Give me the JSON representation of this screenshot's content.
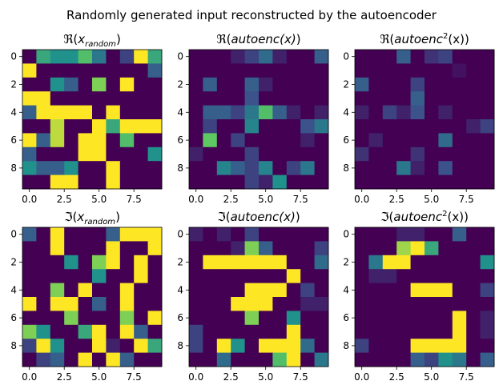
{
  "figure": {
    "suptitle": "Randomly generated input reconstructed by the autoencoder"
  },
  "colormap": [
    "#440154",
    "#3b528b",
    "#21918c",
    "#5ec962",
    "#fde725"
  ],
  "chart_data": [
    {
      "type": "heatmap",
      "title_prefix": "ℜ(",
      "title_core": "x",
      "title_sub": "random",
      "title_sup": "",
      "title_suffix": ")",
      "xticks": [
        0,
        2.5,
        5,
        7.5
      ],
      "xtick_labels": [
        "0.0",
        "2.5",
        "5.0",
        "7.5"
      ],
      "yticks": [
        0,
        2,
        4,
        6,
        8
      ],
      "ytick_labels": [
        "0",
        "2",
        "4",
        "6",
        "8"
      ],
      "values": [
        [
          0,
          0.6,
          0.5,
          0.5,
          0.7,
          0.4,
          0,
          0.2,
          1,
          0.6
        ],
        [
          1,
          0,
          0,
          0,
          0,
          0,
          0,
          0,
          0,
          0.3
        ],
        [
          0,
          0,
          0.5,
          0.3,
          0,
          0.8,
          0,
          1,
          0,
          0
        ],
        [
          1,
          1,
          0,
          0,
          0,
          0,
          0,
          0,
          0,
          0
        ],
        [
          0.3,
          1,
          1,
          1,
          1,
          0,
          1,
          0,
          0,
          0
        ],
        [
          0,
          0,
          0.9,
          0,
          0,
          1,
          0.6,
          1,
          1,
          1
        ],
        [
          1,
          0.3,
          0.9,
          0,
          1,
          1,
          0,
          0.7,
          0,
          0
        ],
        [
          0.3,
          0,
          0,
          0,
          1,
          1,
          0,
          0,
          0,
          0.5
        ],
        [
          0.5,
          0.3,
          0.3,
          0.5,
          0,
          0,
          1,
          0,
          0,
          0
        ],
        [
          0,
          0,
          1,
          1,
          0,
          0,
          1,
          0,
          0,
          0
        ]
      ]
    },
    {
      "type": "heatmap",
      "title_prefix": "ℜ(",
      "title_core": "autoenc(x)",
      "title_sub": "",
      "title_sup": "",
      "title_suffix": ")",
      "xticks": [
        0,
        2.5,
        5,
        7.5
      ],
      "xtick_labels": [
        "0.0",
        "2.5",
        "5.0",
        "7.5"
      ],
      "yticks": [
        0,
        2,
        4,
        6,
        8
      ],
      "ytick_labels": [
        "0",
        "2",
        "4",
        "6",
        "8"
      ],
      "values": [
        [
          0,
          0,
          0,
          0.1,
          0.2,
          0.35,
          0.1,
          0,
          0,
          0.3
        ],
        [
          0,
          0,
          0,
          0,
          0,
          0,
          0,
          0,
          0,
          0
        ],
        [
          0,
          0.3,
          0,
          0,
          0.3,
          0.1,
          0,
          0,
          0,
          0
        ],
        [
          0,
          0,
          0,
          0,
          0.25,
          0,
          0,
          0,
          0,
          0
        ],
        [
          0,
          0.3,
          0.3,
          0.2,
          0.4,
          0.7,
          0.3,
          0.1,
          0,
          0.1
        ],
        [
          0,
          0.2,
          0,
          0,
          0.45,
          0,
          0,
          0,
          0.25,
          0.4
        ],
        [
          0,
          0.75,
          0,
          0.2,
          0,
          0,
          0,
          0,
          0.1,
          0
        ],
        [
          0.1,
          0,
          0,
          0,
          0.2,
          0,
          0,
          0,
          0,
          0
        ],
        [
          0,
          0,
          0.45,
          0.3,
          0.2,
          0.45,
          0,
          0.2,
          0.4,
          0
        ],
        [
          0,
          0,
          0,
          0,
          0.2,
          0.1,
          0.5,
          0,
          0,
          0
        ]
      ]
    },
    {
      "type": "heatmap",
      "title_prefix": "ℜ(",
      "title_core": "autoenc",
      "title_sub": "",
      "title_sup": "2",
      "title_suffix": "(x))",
      "xticks": [
        0,
        2.5,
        5,
        7.5
      ],
      "xtick_labels": [
        "0.0",
        "2.5",
        "5.0",
        "7.5"
      ],
      "yticks": [
        0,
        2,
        4,
        6,
        8
      ],
      "ytick_labels": [
        "0",
        "2",
        "4",
        "6",
        "8"
      ],
      "values": [
        [
          0,
          0,
          0,
          0.3,
          0,
          0.15,
          0.2,
          0,
          0,
          0
        ],
        [
          0,
          0,
          0,
          0,
          0,
          0,
          0,
          0.05,
          0,
          0
        ],
        [
          0.3,
          0,
          0,
          0,
          0.2,
          0,
          0,
          0,
          0,
          0
        ],
        [
          0,
          0,
          0,
          0,
          0.3,
          0,
          0,
          0,
          0,
          0
        ],
        [
          0.1,
          0,
          0.2,
          0.1,
          0.25,
          0,
          0.1,
          0,
          0,
          0
        ],
        [
          0,
          0,
          0,
          0,
          0,
          0,
          0,
          0,
          0.1,
          0.2
        ],
        [
          0,
          0.1,
          0,
          0,
          0,
          0,
          0.35,
          0,
          0,
          0
        ],
        [
          0.15,
          0,
          0,
          0,
          0.15,
          0,
          0,
          0,
          0,
          0
        ],
        [
          0,
          0,
          0,
          0.4,
          0.1,
          0,
          0.25,
          0,
          0,
          0
        ],
        [
          0,
          0,
          0,
          0,
          0,
          0,
          0,
          0,
          0,
          0
        ]
      ]
    },
    {
      "type": "heatmap",
      "title_prefix": "ℑ(",
      "title_core": "x",
      "title_sub": "random",
      "title_sup": "",
      "title_suffix": ")",
      "xticks": [
        0,
        2.5,
        5,
        7.5
      ],
      "xtick_labels": [
        "0.0",
        "2.5",
        "5.0",
        "7.5"
      ],
      "yticks": [
        0,
        2,
        4,
        6,
        8
      ],
      "ytick_labels": [
        "0",
        "2",
        "4",
        "6",
        "8"
      ],
      "values": [
        [
          0.3,
          0,
          1,
          0,
          0,
          0,
          0.3,
          1,
          1,
          1
        ],
        [
          0,
          0,
          1,
          0,
          0,
          0,
          1,
          0,
          0,
          1
        ],
        [
          0,
          0,
          0,
          0.5,
          0,
          0.8,
          1,
          0,
          1,
          0
        ],
        [
          0,
          0,
          0,
          0,
          0,
          0.5,
          0,
          0,
          1,
          0
        ],
        [
          0,
          0,
          0.8,
          0,
          1,
          0,
          0,
          1,
          0,
          0
        ],
        [
          1,
          0,
          1,
          1,
          0,
          0.3,
          0,
          1,
          0,
          0
        ],
        [
          0,
          0,
          0,
          0.8,
          0,
          0,
          0,
          0.8,
          0,
          1
        ],
        [
          0.8,
          0.5,
          0,
          0,
          0.6,
          1,
          0,
          1,
          0.3,
          0
        ],
        [
          0.2,
          1,
          0.5,
          0,
          0,
          1,
          0.1,
          0,
          1,
          0.6
        ],
        [
          0,
          0.2,
          0.3,
          0,
          1,
          0,
          1,
          0.3,
          0,
          0
        ]
      ]
    },
    {
      "type": "heatmap",
      "title_prefix": "ℑ(",
      "title_core": "autoenc(x)",
      "title_sub": "",
      "title_sup": "",
      "title_suffix": ")",
      "xticks": [
        0,
        2.5,
        5,
        7.5
      ],
      "xtick_labels": [
        "0.0",
        "2.5",
        "5.0",
        "7.5"
      ],
      "yticks": [
        0,
        2,
        4,
        6,
        8
      ],
      "ytick_labels": [
        "0",
        "2",
        "4",
        "6",
        "8"
      ],
      "values": [
        [
          0.1,
          0,
          0.1,
          0,
          0.2,
          0,
          0,
          0,
          0,
          0
        ],
        [
          0,
          0,
          0,
          0.1,
          0.8,
          0.3,
          0,
          0,
          0,
          0.2
        ],
        [
          0,
          1,
          1,
          1,
          1,
          1,
          1,
          0,
          0,
          0.35
        ],
        [
          0,
          0,
          0,
          0,
          0,
          0,
          0,
          1,
          0,
          0
        ],
        [
          0,
          0,
          0,
          0,
          1,
          1,
          1,
          0,
          0.2,
          0
        ],
        [
          0,
          0,
          0,
          1,
          1,
          1,
          0,
          0,
          0.1,
          0.1
        ],
        [
          0,
          0,
          0,
          0,
          0.8,
          0,
          0,
          0.5,
          0,
          0
        ],
        [
          0.2,
          0,
          0,
          0,
          0,
          0,
          0,
          1,
          0,
          0
        ],
        [
          0.2,
          0,
          1,
          0.5,
          0,
          1,
          1,
          1,
          0.35,
          0
        ],
        [
          0,
          0,
          0.35,
          0,
          0,
          0,
          0.7,
          1,
          0,
          0.4
        ]
      ]
    },
    {
      "type": "heatmap",
      "title_prefix": "ℑ(",
      "title_core": "autoenc",
      "title_sub": "",
      "title_sup": "2",
      "title_suffix": "(x))",
      "xticks": [
        0,
        2.5,
        5,
        7.5
      ],
      "xtick_labels": [
        "0.0",
        "2.5",
        "5.0",
        "7.5"
      ],
      "yticks": [
        0,
        2,
        4,
        6,
        8
      ],
      "ytick_labels": [
        "0",
        "2",
        "4",
        "6",
        "8"
      ],
      "values": [
        [
          0,
          0,
          0,
          0.1,
          0.1,
          0,
          0,
          0.3,
          0,
          0
        ],
        [
          0,
          0,
          0,
          0.85,
          1,
          0.6,
          0,
          0,
          0,
          0
        ],
        [
          0,
          0.4,
          1,
          1,
          0,
          0,
          0,
          0,
          0,
          0.5
        ],
        [
          0,
          0.1,
          0.1,
          0,
          0,
          0,
          0,
          0,
          0,
          0
        ],
        [
          0,
          0,
          0,
          0,
          1,
          1,
          1,
          0,
          0,
          0.2
        ],
        [
          0,
          0,
          0,
          0,
          0,
          0,
          0,
          0,
          0,
          0
        ],
        [
          0,
          0,
          0,
          0,
          0,
          0,
          0,
          1,
          0,
          0.1
        ],
        [
          0,
          0,
          0,
          0,
          0,
          0,
          0,
          1,
          0,
          0.1
        ],
        [
          0.2,
          0,
          0,
          0,
          1,
          1,
          1,
          1,
          0,
          0
        ],
        [
          0,
          0,
          0,
          0,
          0.3,
          0.2,
          0.5,
          0.4,
          0,
          0.3
        ]
      ]
    }
  ]
}
